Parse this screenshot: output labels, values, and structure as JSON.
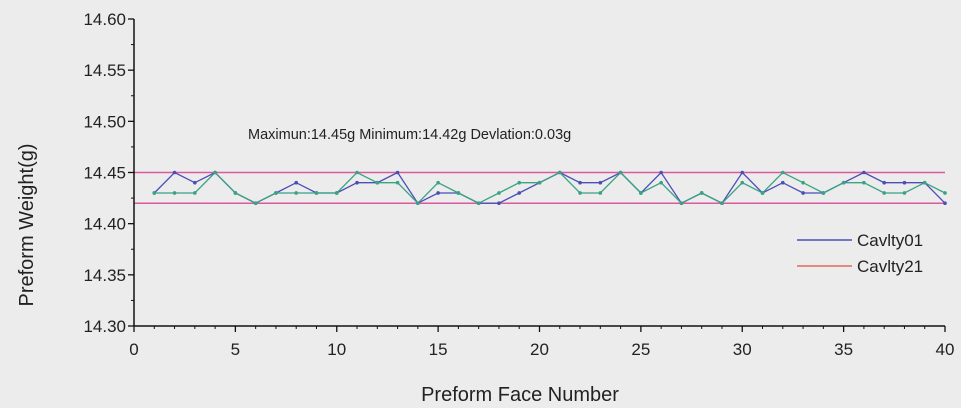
{
  "chart_data": {
    "type": "line",
    "title": "",
    "xlabel": "Preform Face Number",
    "ylabel": "Preform Weight(g)",
    "xlim": [
      0,
      40
    ],
    "ylim": [
      14.3,
      14.6
    ],
    "xticks": [
      0,
      5,
      10,
      15,
      20,
      25,
      30,
      35,
      40
    ],
    "yticks": [
      14.3,
      14.35,
      14.4,
      14.45,
      14.5,
      14.55,
      14.6
    ],
    "xtick_labels": [
      "0",
      "5",
      "10",
      "15",
      "20",
      "25",
      "30",
      "35",
      "40"
    ],
    "ytick_labels": [
      "14.30",
      "14.35",
      "14.40",
      "14.45",
      "14.50",
      "14.55",
      "14.60"
    ],
    "grid": false,
    "legend_position": "right",
    "annotation": "Maximun:14.45g   Minimum:14.42g   Devlation:0.03g",
    "reference_lines": [
      {
        "value": 14.45,
        "color": "#d95a9e"
      },
      {
        "value": 14.42,
        "color": "#d95a9e"
      }
    ],
    "x": [
      1,
      2,
      3,
      4,
      5,
      6,
      7,
      8,
      9,
      10,
      11,
      12,
      13,
      14,
      15,
      16,
      17,
      18,
      19,
      20,
      21,
      22,
      23,
      24,
      25,
      26,
      27,
      28,
      29,
      30,
      31,
      32,
      33,
      34,
      35,
      36,
      37,
      38,
      39,
      40
    ],
    "series": [
      {
        "name": "Cavlty01",
        "color": "#4a4fb5",
        "values": [
          14.43,
          14.45,
          14.44,
          14.45,
          14.43,
          14.42,
          14.43,
          14.44,
          14.43,
          14.43,
          14.44,
          14.44,
          14.45,
          14.42,
          14.43,
          14.43,
          14.42,
          14.42,
          14.43,
          14.44,
          14.45,
          14.44,
          14.44,
          14.45,
          14.43,
          14.45,
          14.42,
          14.43,
          14.42,
          14.45,
          14.43,
          14.44,
          14.43,
          14.43,
          14.44,
          14.45,
          14.44,
          14.44,
          14.44,
          14.42
        ]
      },
      {
        "name": "Cavlty21",
        "color": "#3aa384",
        "values": [
          14.43,
          14.43,
          14.43,
          14.45,
          14.43,
          14.42,
          14.43,
          14.43,
          14.43,
          14.43,
          14.45,
          14.44,
          14.44,
          14.42,
          14.44,
          14.43,
          14.42,
          14.43,
          14.44,
          14.44,
          14.45,
          14.43,
          14.43,
          14.45,
          14.43,
          14.44,
          14.42,
          14.43,
          14.42,
          14.44,
          14.43,
          14.45,
          14.44,
          14.43,
          14.44,
          14.44,
          14.43,
          14.43,
          14.44,
          14.43
        ]
      }
    ],
    "legend": [
      {
        "label": "Cavlty01",
        "color": "#4a4fb5"
      },
      {
        "label": "Cavlty21",
        "color": "#e06a5a"
      }
    ]
  }
}
